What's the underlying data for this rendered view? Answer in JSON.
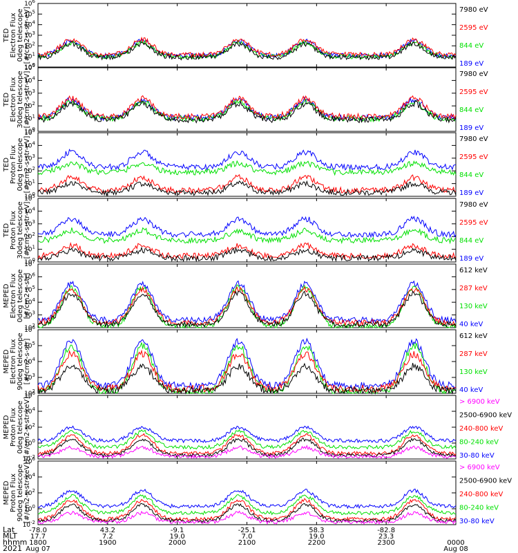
{
  "colors": {
    "black": "#000000",
    "red": "#ff0000",
    "green": "#00e000",
    "blue": "#0000ff",
    "magenta": "#ff00ff"
  },
  "chart_data": [
    {
      "type": "scatter",
      "ylabel": [
        "TED",
        "Electron Flux",
        "0deg telescope",
        "[#/cm2-s-str-eV]"
      ],
      "yscale": "log",
      "yticks": [
        {
          "exp": 0,
          "v": 1
        },
        {
          "exp": 1,
          "v": 10
        },
        {
          "exp": 2,
          "v": 100
        },
        {
          "exp": 3,
          "v": 1000
        },
        {
          "exp": 4,
          "v": 10000
        },
        {
          "exp": 5,
          "v": 100000
        },
        {
          "exp": 6,
          "v": 1000000
        }
      ],
      "ylim": [
        1,
        1000000
      ],
      "legend": [
        {
          "label": "7980 eV",
          "color": "#000000"
        },
        {
          "label": "2595 eV",
          "color": "#ff0000"
        },
        {
          "label": "844 eV",
          "color": "#00e000"
        },
        {
          "label": "189 eV",
          "color": "#0000ff"
        }
      ],
      "series": [
        {
          "name": "189 eV",
          "color": "#0000ff",
          "base": 12,
          "peak": 300
        },
        {
          "name": "844 eV",
          "color": "#00e000",
          "base": 10,
          "peak": 200
        },
        {
          "name": "2595 eV",
          "color": "#ff0000",
          "base": 15,
          "peak": 400
        },
        {
          "name": "7980 eV",
          "color": "#000000",
          "base": 8,
          "peak": 150
        }
      ]
    },
    {
      "type": "scatter",
      "ylabel": [
        "TED",
        "Electron Flux",
        "30deg telescope",
        "[#/cm2-s-str-eV]"
      ],
      "yscale": "log",
      "yticks": [
        {
          "exp": 0,
          "v": 1
        },
        {
          "exp": 1,
          "v": 10
        },
        {
          "exp": 2,
          "v": 100
        },
        {
          "exp": 3,
          "v": 1000
        },
        {
          "exp": 4,
          "v": 10000
        },
        {
          "exp": 5,
          "v": 100000
        }
      ],
      "ylim": [
        1,
        100000
      ],
      "legend": [
        {
          "label": "7980 eV",
          "color": "#000000"
        },
        {
          "label": "2595 eV",
          "color": "#ff0000"
        },
        {
          "label": "844 eV",
          "color": "#00e000"
        },
        {
          "label": "189 eV",
          "color": "#0000ff"
        }
      ],
      "series": [
        {
          "name": "189 eV",
          "color": "#0000ff",
          "base": 12,
          "peak": 300
        },
        {
          "name": "844 eV",
          "color": "#00e000",
          "base": 10,
          "peak": 200
        },
        {
          "name": "2595 eV",
          "color": "#ff0000",
          "base": 15,
          "peak": 400
        },
        {
          "name": "7980 eV",
          "color": "#000000",
          "base": 8,
          "peak": 150
        }
      ]
    },
    {
      "type": "scatter",
      "ylabel": [
        "TED",
        "Proton Flux",
        "0deg telescope",
        "[#/cm2-s-str-eV]"
      ],
      "yscale": "log",
      "yticks": [
        {
          "exp": 0,
          "v": 1
        },
        {
          "exp": 1,
          "v": 10
        },
        {
          "exp": 2,
          "v": 100
        },
        {
          "exp": 3,
          "v": 1000
        },
        {
          "exp": 4,
          "v": 10000
        },
        {
          "exp": 5,
          "v": 100000
        }
      ],
      "ylim": [
        1,
        100000
      ],
      "legend": [
        {
          "label": "7980 eV",
          "color": "#000000"
        },
        {
          "label": "2595 eV",
          "color": "#ff0000"
        },
        {
          "label": "844 eV",
          "color": "#00e000"
        },
        {
          "label": "189 eV",
          "color": "#0000ff"
        }
      ],
      "series": [
        {
          "name": "189 eV",
          "color": "#0000ff",
          "base": 200,
          "peak": 3000
        },
        {
          "name": "844 eV",
          "color": "#00e000",
          "base": 80,
          "peak": 400
        },
        {
          "name": "2595 eV",
          "color": "#ff0000",
          "base": 3,
          "peak": 30
        },
        {
          "name": "7980 eV",
          "color": "#000000",
          "base": 2,
          "peak": 10
        }
      ]
    },
    {
      "type": "scatter",
      "ylabel": [
        "TED",
        "Proton Flux",
        "30deg telescope",
        "[#/cm2-s-str-eV]"
      ],
      "yscale": "log",
      "yticks": [
        {
          "exp": 0,
          "v": 1
        },
        {
          "exp": 1,
          "v": 10
        },
        {
          "exp": 2,
          "v": 100
        },
        {
          "exp": 3,
          "v": 1000
        },
        {
          "exp": 4,
          "v": 10000
        },
        {
          "exp": 5,
          "v": 100000
        }
      ],
      "ylim": [
        1,
        100000
      ],
      "legend": [
        {
          "label": "7980 eV",
          "color": "#000000"
        },
        {
          "label": "2595 eV",
          "color": "#ff0000"
        },
        {
          "label": "844 eV",
          "color": "#00e000"
        },
        {
          "label": "189 eV",
          "color": "#0000ff"
        }
      ],
      "series": [
        {
          "name": "189 eV",
          "color": "#0000ff",
          "base": 150,
          "peak": 2500
        },
        {
          "name": "844 eV",
          "color": "#00e000",
          "base": 50,
          "peak": 300
        },
        {
          "name": "2595 eV",
          "color": "#ff0000",
          "base": 3,
          "peak": 20
        },
        {
          "name": "7980 eV",
          "color": "#000000",
          "base": 2,
          "peak": 8
        }
      ]
    },
    {
      "type": "scatter",
      "ylabel": [
        "MEPED",
        "Electron Flux",
        "0deg telescope",
        "[#/cm2-s-str]"
      ],
      "yscale": "log",
      "yticks": [
        {
          "exp": 2,
          "v": 100
        },
        {
          "exp": 3,
          "v": 1000
        },
        {
          "exp": 4,
          "v": 10000
        },
        {
          "exp": 5,
          "v": 100000
        },
        {
          "exp": 6,
          "v": 1000000
        },
        {
          "exp": 7,
          "v": 10000000
        }
      ],
      "ylim": [
        100,
        10000000
      ],
      "legend": [
        {
          "label": "612 keV",
          "color": "#000000"
        },
        {
          "label": "287 keV",
          "color": "#ff0000"
        },
        {
          "label": "130 keV",
          "color": "#00e000"
        },
        {
          "label": "40 keV",
          "color": "#0000ff"
        }
      ],
      "series": [
        {
          "name": "40 keV",
          "color": "#0000ff",
          "base": 400,
          "peak": 300000
        },
        {
          "name": "130 keV",
          "color": "#00e000",
          "base": 120,
          "peak": 150000
        },
        {
          "name": "287 keV",
          "color": "#ff0000",
          "base": 250,
          "peak": 100000
        },
        {
          "name": "612 keV",
          "color": "#000000",
          "base": 180,
          "peak": 50000
        }
      ]
    },
    {
      "type": "scatter",
      "ylabel": [
        "MEPED",
        "Electron Flux",
        "90deg telescope",
        "[#/cm2-s-str]"
      ],
      "yscale": "log",
      "yticks": [
        {
          "exp": 2,
          "v": 100
        },
        {
          "exp": 3,
          "v": 1000
        },
        {
          "exp": 4,
          "v": 10000
        },
        {
          "exp": 5,
          "v": 100000
        },
        {
          "exp": 6,
          "v": 1000000
        }
      ],
      "ylim": [
        100,
        1000000
      ],
      "legend": [
        {
          "label": "612 keV",
          "color": "#000000"
        },
        {
          "label": "287 keV",
          "color": "#ff0000"
        },
        {
          "label": "130 keV",
          "color": "#00e000"
        },
        {
          "label": "40 keV",
          "color": "#0000ff"
        }
      ],
      "series": [
        {
          "name": "40 keV",
          "color": "#0000ff",
          "base": 300,
          "peak": 200000
        },
        {
          "name": "130 keV",
          "color": "#00e000",
          "base": 120,
          "peak": 100000
        },
        {
          "name": "287 keV",
          "color": "#ff0000",
          "base": 200,
          "peak": 30000
        },
        {
          "name": "612 keV",
          "color": "#000000",
          "base": 150,
          "peak": 5000
        }
      ]
    },
    {
      "type": "scatter",
      "ylabel": [
        "MEPED",
        "Proton Flux",
        "0deg telescope",
        "[#/cm2-s-str-keV]"
      ],
      "yscale": "log",
      "yticks": [
        {
          "exp": -2,
          "v": 0.01
        },
        {
          "exp": 0,
          "v": 1
        },
        {
          "exp": 2,
          "v": 100
        },
        {
          "exp": 4,
          "v": 10000
        },
        {
          "exp": 6,
          "v": 1000000
        }
      ],
      "ylim": [
        0.01,
        1000000
      ],
      "legend": [
        {
          "label": "> 6900 keV",
          "color": "#ff00ff"
        },
        {
          "label": "2500-6900 keV",
          "color": "#000000"
        },
        {
          "label": "240-800 keV",
          "color": "#ff0000"
        },
        {
          "label": "80-240 keV",
          "color": "#00e000"
        },
        {
          "label": "30-80 keV",
          "color": "#0000ff"
        }
      ],
      "series": [
        {
          "name": "30-80 keV",
          "color": "#0000ff",
          "base": 2,
          "peak": 100
        },
        {
          "name": "80-240 keV",
          "color": "#00e000",
          "base": 0.3,
          "peak": 30
        },
        {
          "name": "240-800 keV",
          "color": "#ff0000",
          "base": 0.05,
          "peak": 10
        },
        {
          "name": "2500-6900 keV",
          "color": "#000000",
          "base": 0.03,
          "peak": 3
        },
        {
          "name": "> 6900 keV",
          "color": "#ff00ff",
          "base": 0.02,
          "peak": 0.3
        }
      ]
    },
    {
      "type": "scatter",
      "ylabel": [
        "MEPED",
        "Proton Flux",
        "90deg telescope",
        "[#/cm2-s-str-keV]"
      ],
      "yscale": "log",
      "yticks": [
        {
          "exp": -2,
          "v": 0.01
        },
        {
          "exp": 0,
          "v": 1
        },
        {
          "exp": 2,
          "v": 100
        },
        {
          "exp": 4,
          "v": 10000
        },
        {
          "exp": 6,
          "v": 1000000
        }
      ],
      "ylim": [
        0.01,
        1000000
      ],
      "legend": [
        {
          "label": "> 6900 keV",
          "color": "#ff00ff"
        },
        {
          "label": "2500-6900 keV",
          "color": "#000000"
        },
        {
          "label": "240-800 keV",
          "color": "#ff0000"
        },
        {
          "label": "80-240 keV",
          "color": "#00e000"
        },
        {
          "label": "30-80 keV",
          "color": "#0000ff"
        }
      ],
      "series": [
        {
          "name": "30-80 keV",
          "color": "#0000ff",
          "base": 2,
          "peak": 200
        },
        {
          "name": "80-240 keV",
          "color": "#00e000",
          "base": 0.3,
          "peak": 40
        },
        {
          "name": "240-800 keV",
          "color": "#ff0000",
          "base": 0.05,
          "peak": 12
        },
        {
          "name": "2500-6900 keV",
          "color": "#000000",
          "base": 0.03,
          "peak": 3
        },
        {
          "name": "> 6900 keV",
          "color": "#ff00ff",
          "base": 0.02,
          "peak": 0.3
        }
      ]
    }
  ],
  "x_axis": {
    "row_labels": [
      "Lat",
      "MLT",
      "hhmm",
      "2021"
    ],
    "ticks": [
      {
        "t": 0,
        "lat": "-78.0",
        "mlt": "17.7",
        "hhmm": "1800",
        "date": "Aug 07"
      },
      {
        "t": 0.1667,
        "lat": "43.2",
        "mlt": "7.2",
        "hhmm": "1900",
        "date": ""
      },
      {
        "t": 0.3333,
        "lat": "-9.1",
        "mlt": "19.0",
        "hhmm": "2000",
        "date": ""
      },
      {
        "t": 0.5,
        "lat": "-25.1",
        "mlt": "7.0",
        "hhmm": "2100",
        "date": ""
      },
      {
        "t": 0.6667,
        "lat": "58.3",
        "mlt": "19.0",
        "hhmm": "2200",
        "date": ""
      },
      {
        "t": 0.8333,
        "lat": "-82.8",
        "mlt": "23.3",
        "hhmm": "2300",
        "date": ""
      },
      {
        "t": 1,
        "lat": "",
        "mlt": "",
        "hhmm": "0000",
        "date": "Aug 08"
      }
    ],
    "passes": [
      0.08,
      0.25,
      0.48,
      0.64,
      0.9
    ]
  }
}
